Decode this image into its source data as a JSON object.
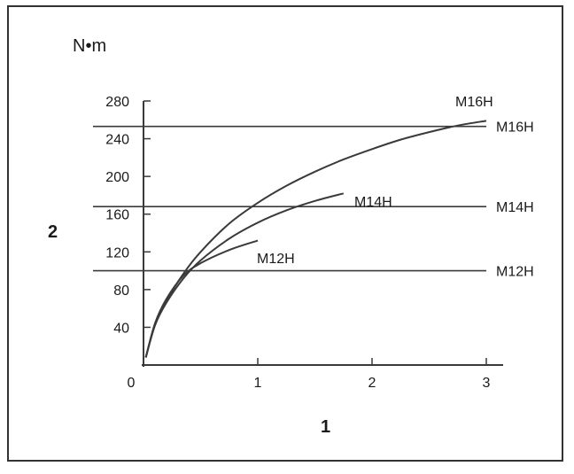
{
  "chart_data": {
    "type": "line",
    "unit_label": "N•m",
    "xlabel": "1",
    "ylabel": "2",
    "xlim": [
      0,
      3
    ],
    "ylim": [
      0,
      280
    ],
    "x_ticks": [
      0,
      1,
      2,
      3
    ],
    "y_ticks": [
      40,
      80,
      120,
      160,
      200,
      240,
      280
    ],
    "curves": [
      {
        "name": "M16H",
        "points": [
          [
            0.02,
            8
          ],
          [
            0.1,
            42
          ],
          [
            0.2,
            68
          ],
          [
            0.35,
            97
          ],
          [
            0.5,
            120
          ],
          [
            0.75,
            150
          ],
          [
            1.0,
            172
          ],
          [
            1.25,
            190
          ],
          [
            1.5,
            205
          ],
          [
            1.75,
            218
          ],
          [
            2.0,
            229
          ],
          [
            2.25,
            239
          ],
          [
            2.5,
            247
          ],
          [
            2.75,
            254
          ],
          [
            3.0,
            259
          ]
        ]
      },
      {
        "name": "M14H",
        "points": [
          [
            0.02,
            8
          ],
          [
            0.1,
            42
          ],
          [
            0.2,
            66
          ],
          [
            0.35,
            92
          ],
          [
            0.5,
            111
          ],
          [
            0.75,
            134
          ],
          [
            1.0,
            151
          ],
          [
            1.25,
            164
          ],
          [
            1.5,
            174
          ],
          [
            1.75,
            182
          ]
        ]
      },
      {
        "name": "M12H",
        "points": [
          [
            0.02,
            8
          ],
          [
            0.1,
            44
          ],
          [
            0.2,
            70
          ],
          [
            0.35,
            95
          ],
          [
            0.5,
            108
          ],
          [
            0.75,
            122
          ],
          [
            1.0,
            132
          ]
        ]
      }
    ],
    "limits": [
      {
        "name": "M16H",
        "value": 253
      },
      {
        "name": "M14H",
        "value": 168
      },
      {
        "name": "M12H",
        "value": 100
      }
    ]
  }
}
